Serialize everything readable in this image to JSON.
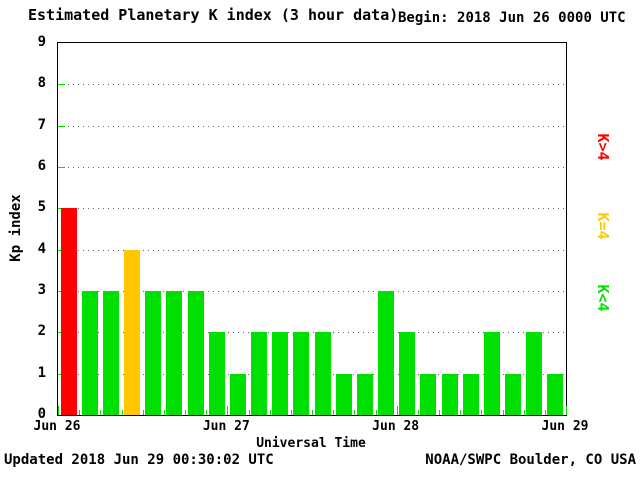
{
  "header": {
    "title": "Estimated Planetary K index (3 hour data)",
    "begin_label": "Begin:",
    "begin_value": "2018 Jun 26 0000 UTC"
  },
  "footer": {
    "updated": "Updated 2018 Jun 29 00:30:02 UTC",
    "credit": "NOAA/SWPC Boulder, CO USA"
  },
  "chart_data": {
    "type": "bar",
    "title": "Estimated Planetary K index (3 hour data)",
    "begin": "2018 Jun 26 0000 UTC",
    "xlabel": "Universal Time",
    "ylabel": "Kp index",
    "ylim": [
      0,
      9
    ],
    "yticks": [
      0,
      1,
      2,
      3,
      4,
      5,
      6,
      7,
      8,
      9
    ],
    "x_day_labels": [
      "Jun 26",
      "Jun 27",
      "Jun 28",
      "Jun 29"
    ],
    "hours_per_bar": 3,
    "values": [
      5,
      3,
      3,
      4,
      3,
      3,
      3,
      2,
      1,
      2,
      2,
      2,
      2,
      1,
      1,
      3,
      2,
      1,
      1,
      1,
      2,
      1,
      2,
      1
    ],
    "colors": {
      "above4": "#FF0000",
      "equal4": "#FFC800",
      "below4": "#00E000"
    },
    "legend": [
      {
        "label": "K>4",
        "color": "#FF0000"
      },
      {
        "label": "K=4",
        "color": "#FFC800"
      },
      {
        "label": "K<4",
        "color": "#00E000"
      }
    ],
    "grid": "horizontal-dotted",
    "legend_position": "right"
  }
}
